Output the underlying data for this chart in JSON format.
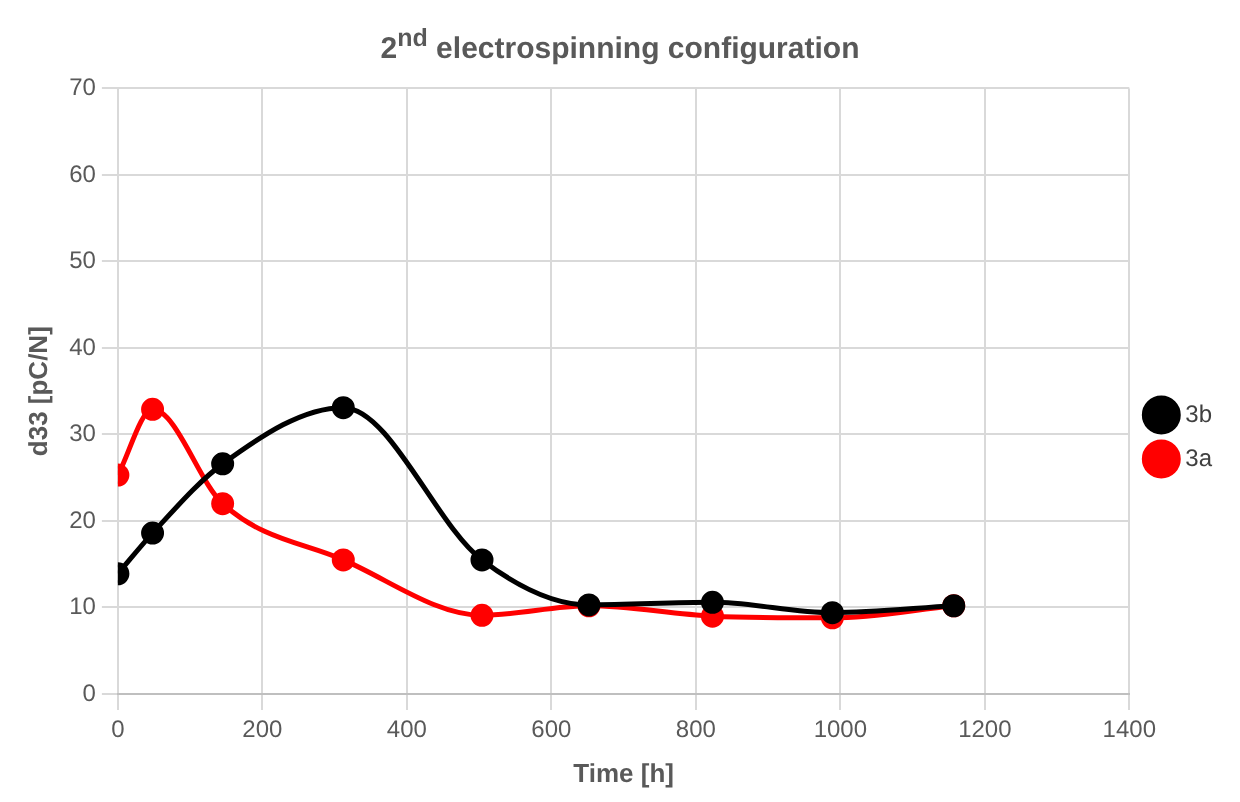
{
  "chart_data": {
    "type": "line",
    "title": "2$^{nd}$ electrospinning configuration",
    "xlabel": "Time [h]",
    "ylabel": "d33 [pC/N]",
    "xlim": [
      0,
      1400
    ],
    "xticks": [
      0,
      200,
      400,
      600,
      800,
      1000,
      1200,
      1400
    ],
    "ylim": [
      0,
      70
    ],
    "yticks": [
      0,
      10,
      20,
      30,
      40,
      50,
      60,
      70
    ],
    "series": [
      {
        "name": "3b",
        "color": "#000000",
        "x": [
          0,
          48,
          145,
          312,
          504,
          652,
          823,
          989,
          1157
        ],
        "values": [
          13.9,
          18.6,
          26.6,
          33.1,
          15.5,
          10.3,
          10.6,
          9.4,
          10.2
        ]
      },
      {
        "name": "3a",
        "color": "#ff0000",
        "x": [
          0,
          48,
          145,
          312,
          504,
          652,
          823,
          989,
          1157
        ],
        "values": [
          25.3,
          32.9,
          22.0,
          15.5,
          9.1,
          10.2,
          9.0,
          8.8,
          10.2
        ]
      }
    ],
    "grid": true,
    "legend": "right",
    "marker": "circle",
    "line_style": "solid"
  }
}
